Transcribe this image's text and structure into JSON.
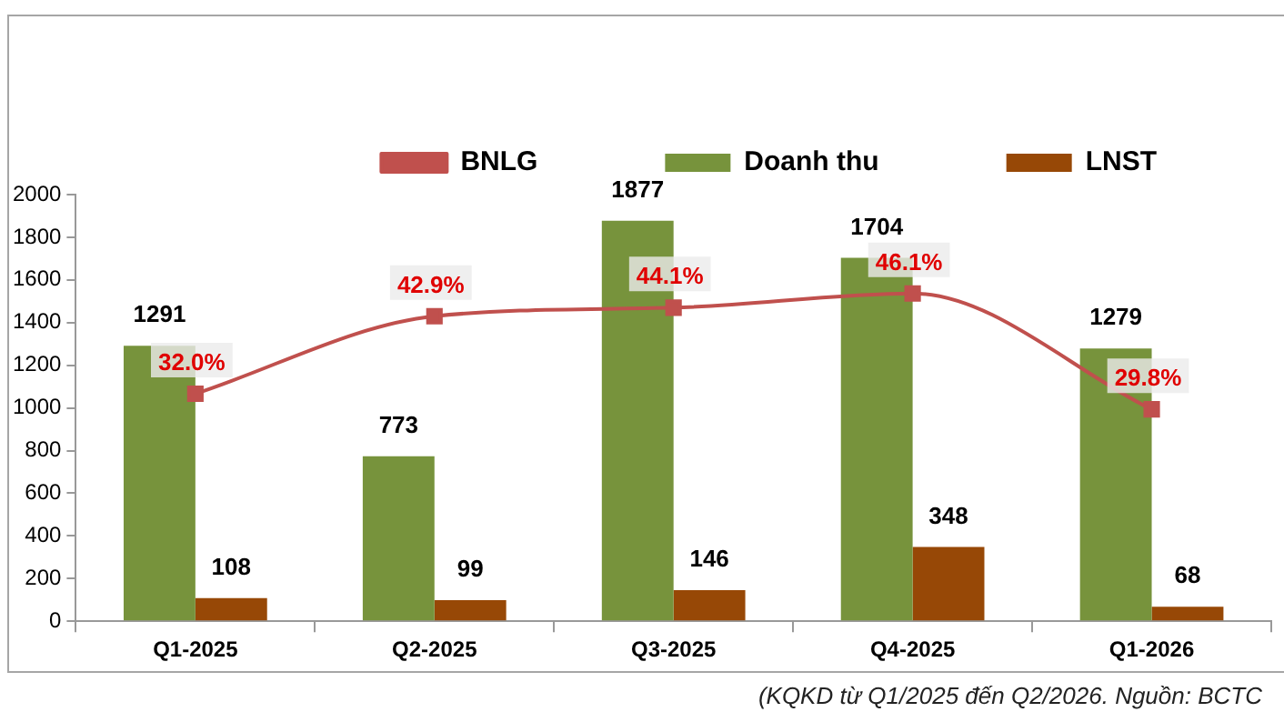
{
  "chart_data": {
    "type": "bar",
    "categories": [
      "Q1-2025",
      "Q2-2025",
      "Q3-2025",
      "Q4-2025",
      "Q1-2026"
    ],
    "series": [
      {
        "name": "Doanh thu",
        "color": "#77933c",
        "values": [
          1291,
          773,
          1877,
          1704,
          1279
        ]
      },
      {
        "name": "LNST",
        "color": "#974806",
        "values": [
          108,
          99,
          146,
          348,
          68
        ]
      },
      {
        "name": "BNLG",
        "type": "line",
        "axis": "y2",
        "color": "#c0504d",
        "marker": "square",
        "values": [
          32.0,
          42.9,
          44.1,
          46.1,
          29.8
        ],
        "value_labels": [
          "32.0%",
          "42.9%",
          "44.1%",
          "46.1%",
          "29.8%"
        ]
      }
    ],
    "ylim": [
      0,
      2000
    ],
    "yticks": [
      0,
      200,
      400,
      600,
      800,
      1000,
      1200,
      1400,
      1600,
      1800,
      2000
    ],
    "y2lim": [
      0,
      60
    ],
    "data_labels": true,
    "legend": "top",
    "grid": false,
    "annotations": [
      "(KQKD từ Q1/2025 đến Q2/2026. Nguồn: BCTC"
    ]
  }
}
